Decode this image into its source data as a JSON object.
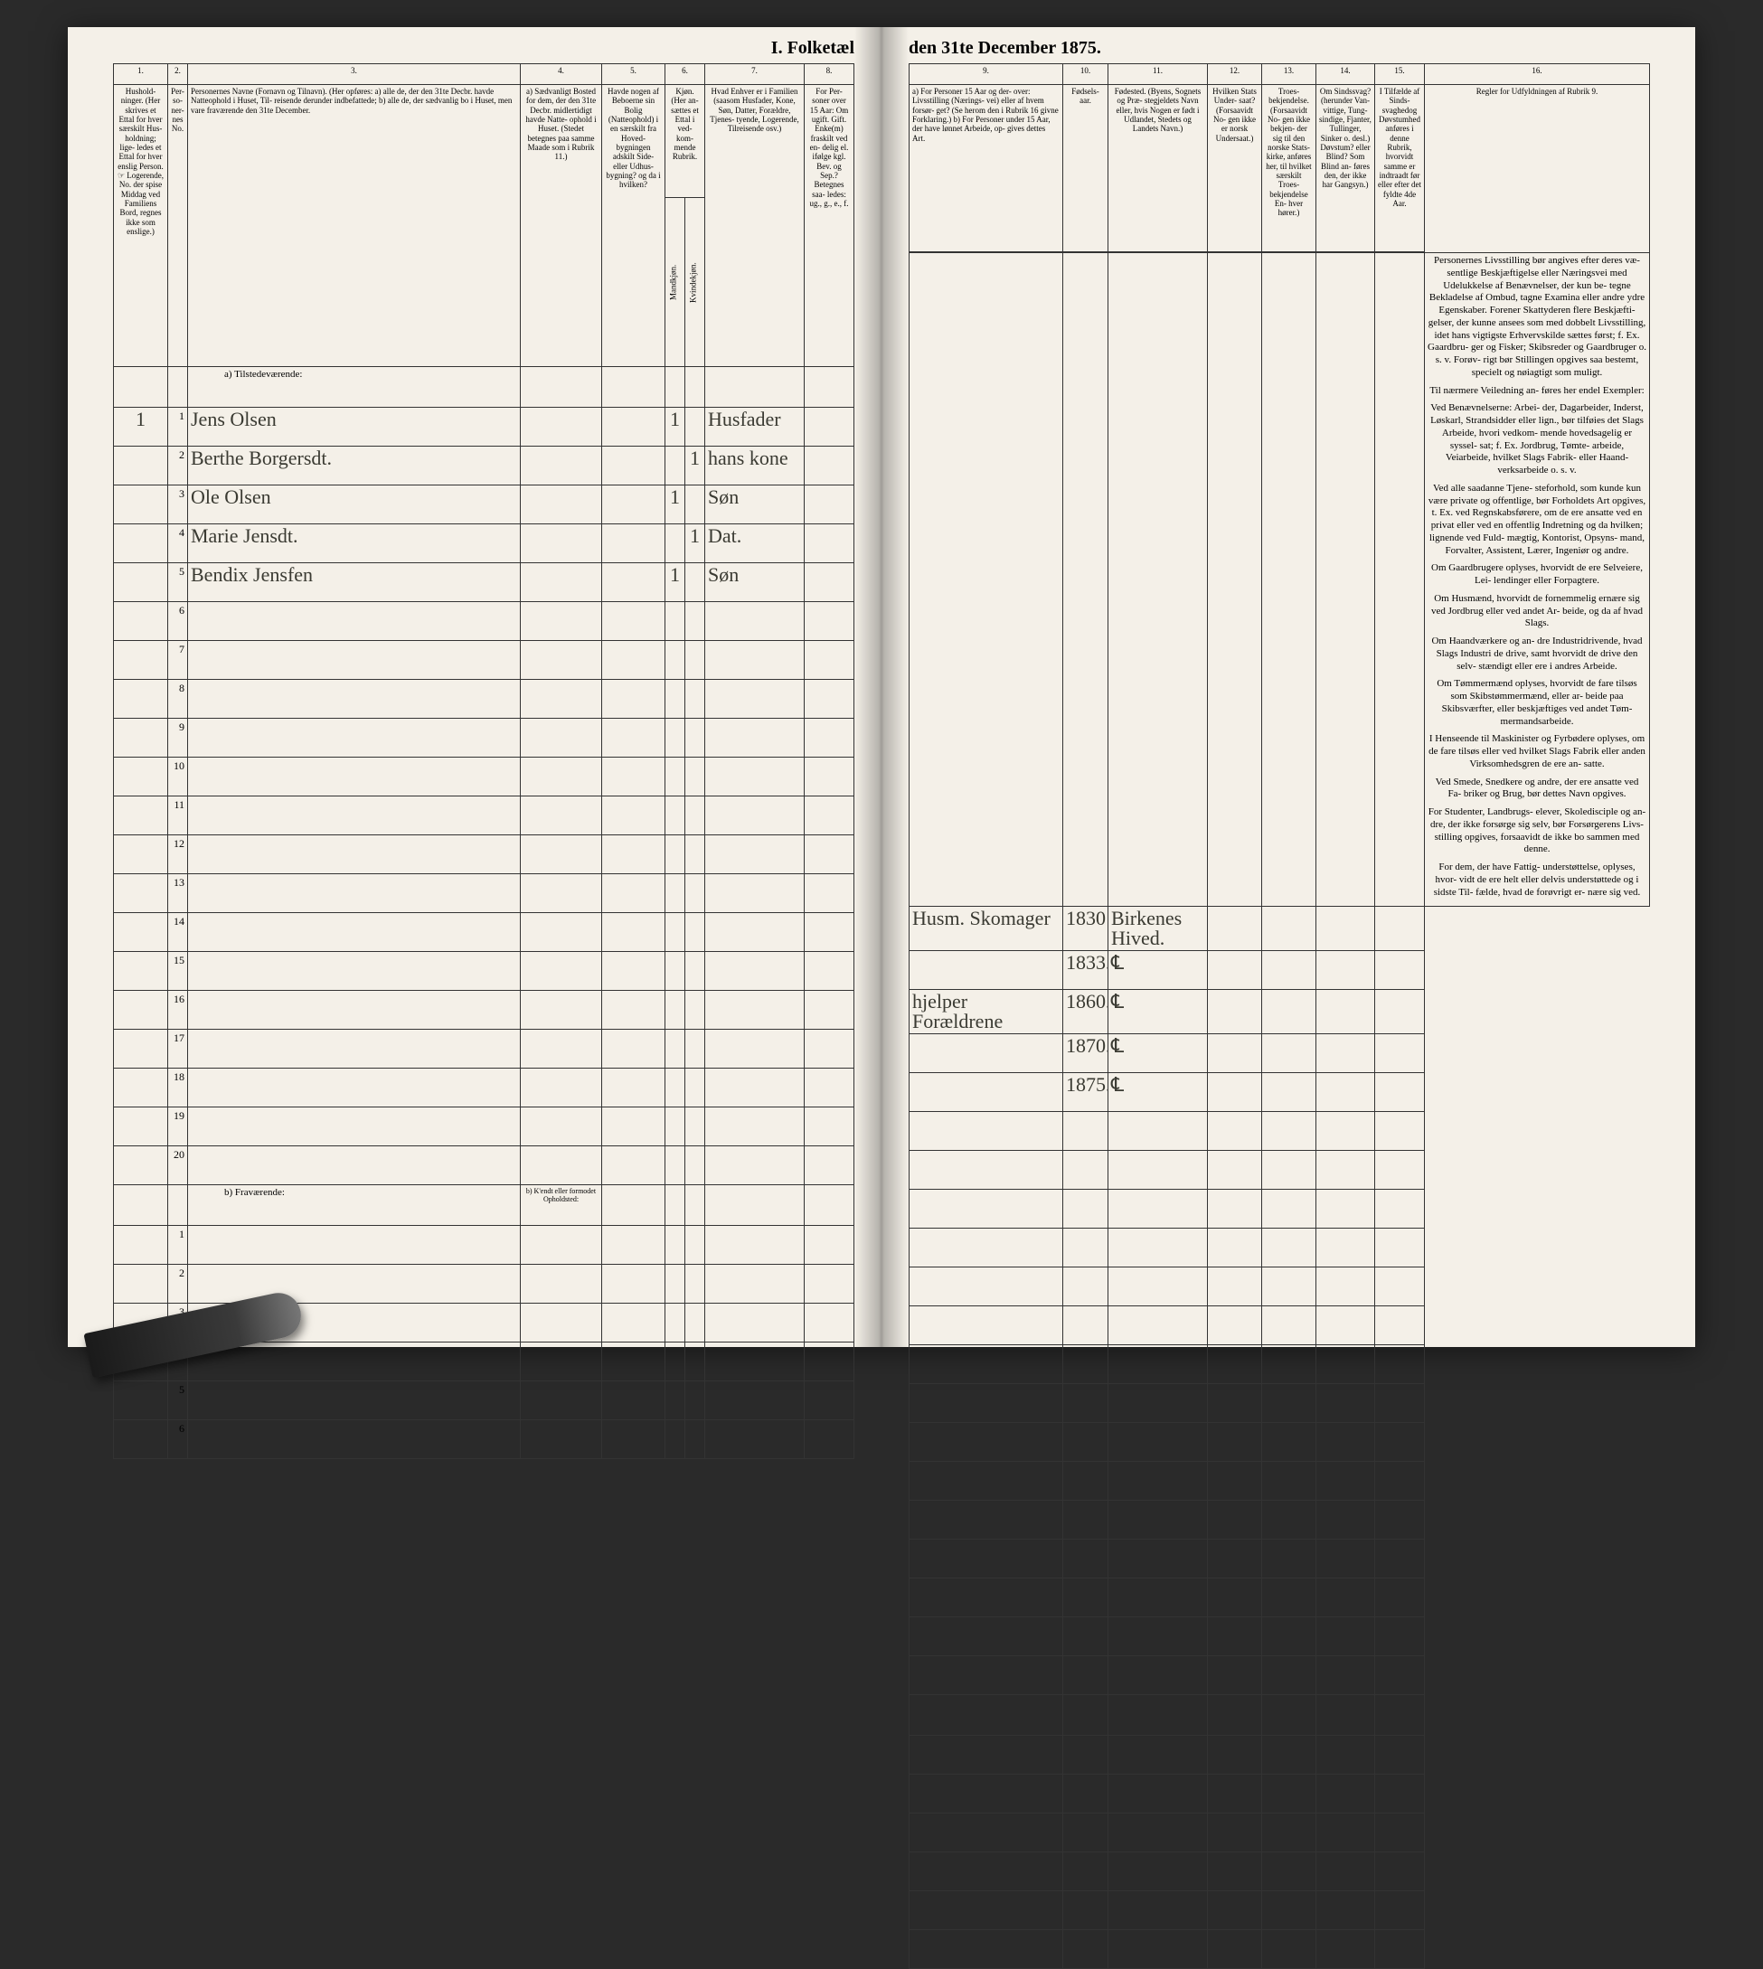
{
  "title_left": "I.  Folketæl",
  "title_right": "den 31te December 1875.",
  "colnums_left": [
    "1.",
    "2.",
    "3.",
    "4.",
    "5.",
    "6.",
    "7.",
    "8."
  ],
  "colnums_right": [
    "9.",
    "10.",
    "11.",
    "12.",
    "13.",
    "14.",
    "15.",
    "16."
  ],
  "headers_left": {
    "c1": "Hushold-\nninger.\n(Her skrives et Ettal for hver særskilt Hus- holdning; lige- ledes et Ettal for hver enslig Person.\n☞ Logerende, No. der spise Middag ved Familiens Bord, regnes ikke som enslige.)",
    "c2": "Per- so- ner- nes No.",
    "c3": "Personernes Navne (Fornavn og Tilnavn).\n\n(Her opføres:\na) alle de, der den 31te Decbr. havde Natteophold i Huset, Til- reisende derunder indbefattede;\nb) alle de, der sædvanlig bo i Huset, men vare fraværende den 31te December.",
    "c4": "a) Sædvanligt Bosted for dem, der den 31te Decbr. midlertidigt havde Natte- ophold i Huset.\n(Stedet betegnes paa samme Maade som i Rubrik 11.)",
    "c5": "Havde nogen af Beboerne sin Bolig (Natteophold) i en særskilt fra Hoved- bygningen adskilt Side- eller Udhus- bygning? og da i hvilken?",
    "c6": "Kjøn.\n(Her an- sættes et Ettal i ved- kom- mende Rubrik.",
    "c6a": "Mandkjøn.",
    "c6b": "Kvindekjøn.",
    "c7": "Hvad Enhver er i Familien\n(saasom Husfader, Kone, Søn, Datter, Forældre, Tjenes- tyende, Logerende, Tilreisende osv.)",
    "c8": "For Per- soner over 15 Aar: Om ugift. Gift. Enke(m) fraskilt ved en- delig el. ifølge kgl. Bev. og Sep.?\nBetegnes saa- ledes: ug., g., e., f."
  },
  "headers_right": {
    "c9": "a) For Personer 15 Aar og der- over: Livsstilling (Nærings- vei) eller af hvem forsør- get? (Se herom den i Rubrik 16 givne Forklaring.)\nb) For Personer under 15 Aar, der have lønnet Arbeide, op- gives dettes Art.",
    "c10": "Fødsels- aar.",
    "c11": "Fødested.\n(Byens, Sognets og Præ- stegjeldets Navn eller, hvis Nogen er født i Udlandet, Stedets og Landets Navn.)",
    "c12": "Hvilken Stats Under- saat?\n(Forsaavidt No- gen ikke er norsk Undersaat.)",
    "c13": "Troes- bekjendelse.\n(Forsaavidt No- gen ikke bekjen- der sig til den norske Stats- kirke, anføres her, til hvilket særskilt Troes- bekjendelse En- hver hører.)",
    "c14": "Om Sindssvag? (herunder Van- vittige, Tung- sindige, Fjanter, Tullinger, Sinker o. desl.) Døvstum? eller Blind? Som Blind an- føres den, der ikke har Gangsyn.)",
    "c15": "I Tilfælde af Sinds- svaghedog Døvstumhed anføres i denne Rubrik, hvorvidt samme er indtraadt før eller efter det fyldte 4de Aar.",
    "c16": "Regler for Udfyldningen\naf\nRubrik 9."
  },
  "section_a": "a)    Tilstedeværende:",
  "section_b": "b)    Fraværende:",
  "section_b_col4": "b) K'endt eller formodet Opholdsted:",
  "rows": [
    {
      "n": "1",
      "name": "Jens Olsen",
      "c4": "",
      "c5": "",
      "c6a": "1",
      "c6b": "",
      "c7": "Husfader",
      "c8": "",
      "c9": "Husm. Skomager",
      "c10": "1830",
      "c11": "Birkenes Hived."
    },
    {
      "n": "2",
      "name": "Berthe Borgersdt.",
      "c4": "",
      "c5": "",
      "c6a": "",
      "c6b": "1",
      "c7": "hans kone",
      "c8": "",
      "c9": "",
      "c10": "1833.",
      "c11": "℄"
    },
    {
      "n": "3",
      "name": "Ole Olsen",
      "c4": "",
      "c5": "",
      "c6a": "1",
      "c6b": "",
      "c7": "Søn",
      "c8": "",
      "c9": "hjelper Forældrene",
      "c10": "1860.",
      "c11": "℄"
    },
    {
      "n": "4",
      "name": "Marie Jensdt.",
      "c4": "",
      "c5": "",
      "c6a": "",
      "c6b": "1",
      "c7": "Dat.",
      "c8": "",
      "c9": "",
      "c10": "1870.",
      "c11": "℄"
    },
    {
      "n": "5",
      "name": "Bendix Jensfen",
      "c4": "",
      "c5": "",
      "c6a": "1",
      "c6b": "",
      "c7": "Søn",
      "c8": "",
      "c9": "",
      "c10": "1875.",
      "c11": "℄"
    }
  ],
  "empty_a": [
    "6",
    "7",
    "8",
    "9",
    "10",
    "11",
    "12",
    "13",
    "14",
    "15",
    "16",
    "17",
    "18",
    "19",
    "20"
  ],
  "empty_b": [
    "1",
    "2",
    "3",
    "4",
    "5",
    "6"
  ],
  "rubrik9_paras": [
    "Personernes Livsstilling bør angives efter deres væ- sentlige Beskjæftigelse eller Næringsvei med Udelukkelse af Benævnelser, der kun be- tegne Bekladelse af Ombud, tagne Examina eller andre ydre Egenskaber. Forener Skattyderen flere Beskjæfti- gelser, der kunne ansees som med dobbelt Livsstilling, idet hans vigtigste Erhvervskilde sættes først; f. Ex. Gaardbru- ger og Fisker; Skibsreder og Gaardbruger o. s. v. Forøv- rigt bør Stillingen opgives saa bestemt, specielt og nøiagtigt som muligt.",
    "Til nærmere Veiledning an- føres her endel Exempler:",
    "Ved Benævnelserne: Arbei- der, Dagarbeider, Inderst, Løskarl, Strandsidder eller lign., bør tilføies det Slags Arbeide, hvori vedkom- mende hovedsagelig er syssel- sat; f. Ex. Jordbrug, Tømte- arbeide, Veiarbeide, hvilket Slags Fabrik- eller Haand- verksarbeide o. s. v.",
    "Ved alle saadanne Tjene- steforhold, som kunde kun være private og offentlige, bør Forholdets Art opgives, t. Ex. ved Regnskabsførere, om de ere ansatte ved en privat eller ved en offentlig Indretning og da hvilken; lignende ved Fuld- mægtig, Kontorist, Opsyns- mand, Forvalter, Assistent, Lærer, Ingeniør og andre.",
    "Om Gaardbrugere oplyses, hvorvidt de ere Selveiere, Lei- lendinger eller Forpagtere.",
    "Om Husmænd, hvorvidt de fornemmelig ernære sig ved Jordbrug eller ved andet Ar- beide, og da af hvad Slags.",
    "Om Haandværkere og an- dre Industridrivende, hvad Slags Industri de drive, samt hvorvidt de drive den selv- stændigt eller ere i andres Arbeide.",
    "Om Tømmermænd oplyses, hvorvidt de fare tilsøs som Skibstømmermænd, eller ar- beide paa Skibsværfter, eller beskjæftiges ved andet Tøm- mermandsarbeide.",
    "I Henseende til Maskinister og Fyrbødere oplyses, om de fare tilsøs eller ved hvilket Slags Fabrik eller anden Virksomhedsgren de ere an- satte.",
    "Ved Smede, Snedkere og andre, der ere ansatte ved Fa- briker og Brug, bør dettes Navn opgives.",
    "For Studenter, Landbrugs- elever, Skoledisciple og an- dre, der ikke forsørge sig selv, bør Forsørgerens Livs- stilling opgives, forsaavidt de ikke bo sammen med denne.",
    "For dem, der have Fattig- understøttelse, oplyses, hvor- vidt de ere helt eller delvis understøttede og i sidste Til- fælde, hvad de forøvrigt er- nære sig ved."
  ]
}
